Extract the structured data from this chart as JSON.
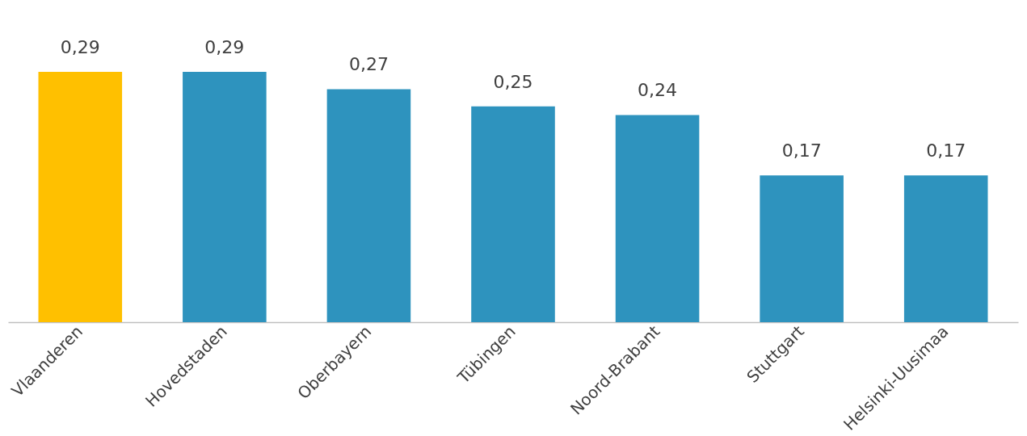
{
  "chart_data": {
    "type": "bar",
    "categories": [
      "Vlaanderen",
      "Hovedstaden",
      "Oberbayern",
      "Tübingen",
      "Noord-Brabant",
      "Stuttgart",
      "Helsinki-Uusimaa"
    ],
    "values": [
      0.29,
      0.29,
      0.27,
      0.25,
      0.24,
      0.17,
      0.17
    ],
    "colors": [
      "#ffc000",
      "#2e93be",
      "#2e93be",
      "#2e93be",
      "#2e93be",
      "#2e93be",
      "#2e93be"
    ],
    "value_labels": [
      "0,29",
      "0,29",
      "0,27",
      "0,25",
      "0,24",
      "0,17",
      "0,17"
    ],
    "grid": false
  }
}
